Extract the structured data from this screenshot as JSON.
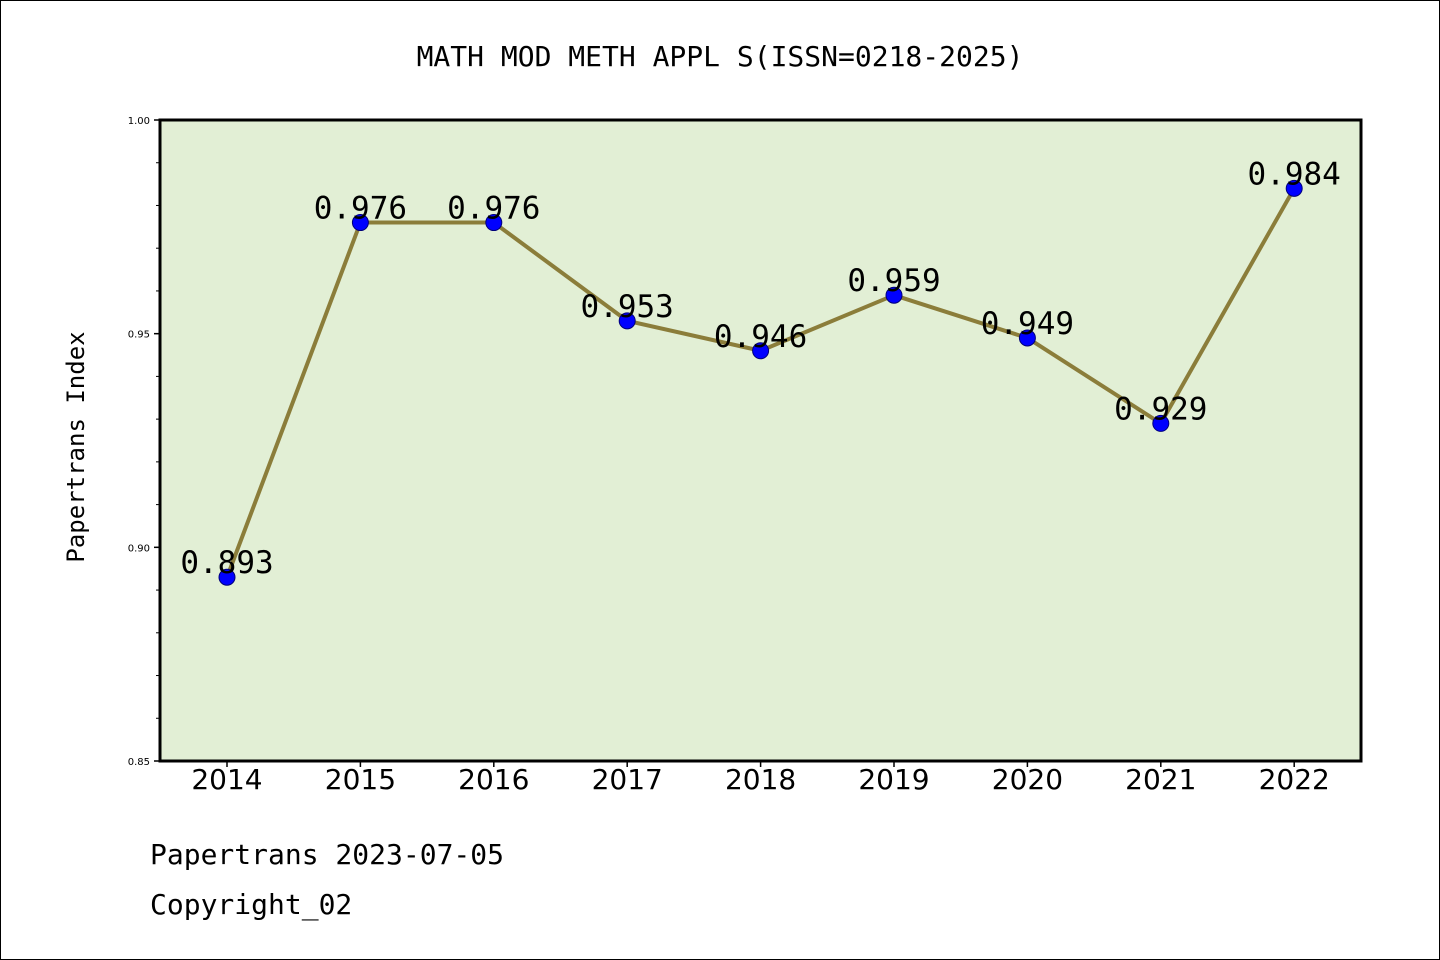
{
  "chart_data": {
    "type": "line",
    "title": "MATH MOD METH APPL S(ISSN=0218-2025)",
    "ylabel": "Papertrans Index",
    "xlabel": "",
    "categories": [
      "2014",
      "2015",
      "2016",
      "2017",
      "2018",
      "2019",
      "2020",
      "2021",
      "2022"
    ],
    "series": [
      {
        "values": [
          0.893,
          0.976,
          0.976,
          0.953,
          0.946,
          0.959,
          0.949,
          0.929,
          0.984
        ]
      }
    ],
    "data_labels": [
      "0.893",
      "0.976",
      "0.976",
      "0.953",
      "0.946",
      "0.959",
      "0.949",
      "0.929",
      "0.984"
    ],
    "ylim": [
      0.85,
      1.0
    ],
    "yticks": [
      "0.85",
      "0.90",
      "0.95",
      "1.00"
    ],
    "grid": false,
    "colors": {
      "plot_background": "#e2efd5",
      "line": "#8b7d3a",
      "marker": "#0000ff"
    }
  },
  "footer": {
    "line1": "Papertrans 2023-07-05",
    "line2": "Copyright_02"
  }
}
